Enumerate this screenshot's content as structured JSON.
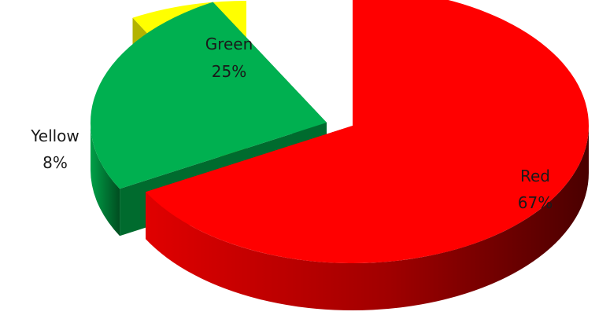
{
  "chart_data": {
    "type": "pie",
    "style": "3d-exploded",
    "categories": [
      "Red",
      "Green",
      "Yellow"
    ],
    "values": [
      67,
      25,
      8
    ],
    "value_labels": [
      "67%",
      "25%",
      "8%"
    ],
    "colors": [
      "#ff0000",
      "#00b050",
      "#ffff00"
    ],
    "side_colors": [
      "#c00000",
      "#006b2e",
      "#b3b300"
    ],
    "title": "",
    "legend": "none"
  }
}
